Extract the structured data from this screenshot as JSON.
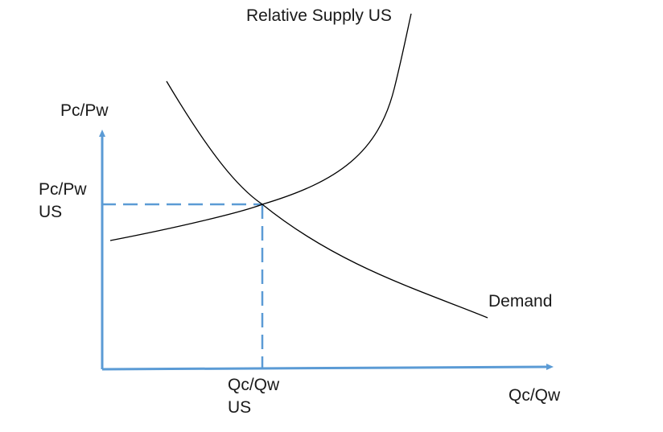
{
  "diagram": {
    "y_axis_label": "Pc/Pw",
    "x_axis_label": "Qc/Qw",
    "supply_curve_label": "Relative Supply US",
    "demand_curve_label": "Demand",
    "equilibrium_price_label": {
      "line1": "Pc/Pw",
      "line2": "US"
    },
    "equilibrium_quantity_label": {
      "line1": "Qc/Qw",
      "line2": "US"
    },
    "colors": {
      "axes": "#5b9bd5",
      "guides": "#5b9bd5",
      "curves": "#000000",
      "text": "#1a1a1a"
    }
  }
}
